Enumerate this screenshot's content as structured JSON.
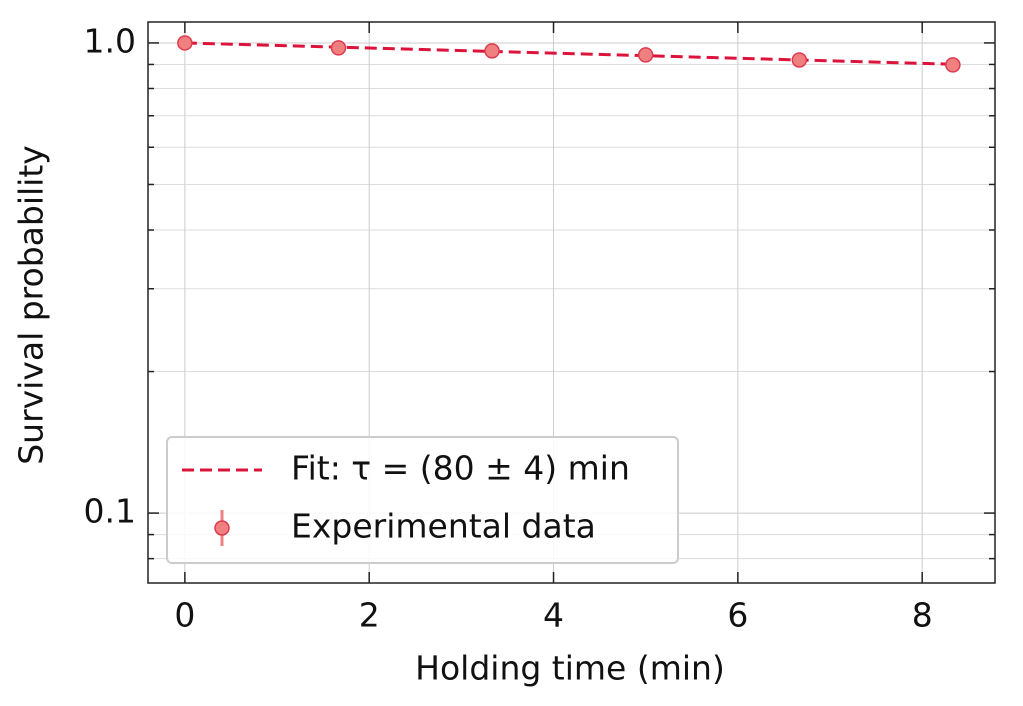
{
  "chart_data": {
    "type": "scatter",
    "xlabel": "Holding time (min)",
    "ylabel": "Survival probability",
    "xlim": [
      -0.4,
      8.79
    ],
    "ylim": [
      0.071,
      1.108
    ],
    "yscale": "log",
    "xticks": [
      0,
      2,
      4,
      6,
      8
    ],
    "yticks": [
      {
        "value": 0.1,
        "label": "0.1"
      },
      {
        "value": 1,
        "label": "1.0"
      }
    ],
    "yminorticks": [
      0.08,
      0.09,
      0.2,
      0.3,
      0.4,
      0.5,
      0.6,
      0.7,
      0.8,
      0.9
    ],
    "grid": true,
    "legend": "lower left",
    "series": [
      {
        "name": "Fit: τ = (80 ± 4) min",
        "type": "line",
        "color": "#dc143c",
        "x": [
          0,
          8.333
        ],
        "values": [
          1.0,
          0.901
        ]
      },
      {
        "name": "Experimental data",
        "type": "scatter",
        "color": "#f08080",
        "x": [
          0,
          1.667,
          3.333,
          5,
          6.667,
          8.333
        ],
        "values": [
          1.0,
          0.976,
          0.962,
          0.943,
          0.92,
          0.898
        ]
      }
    ]
  }
}
